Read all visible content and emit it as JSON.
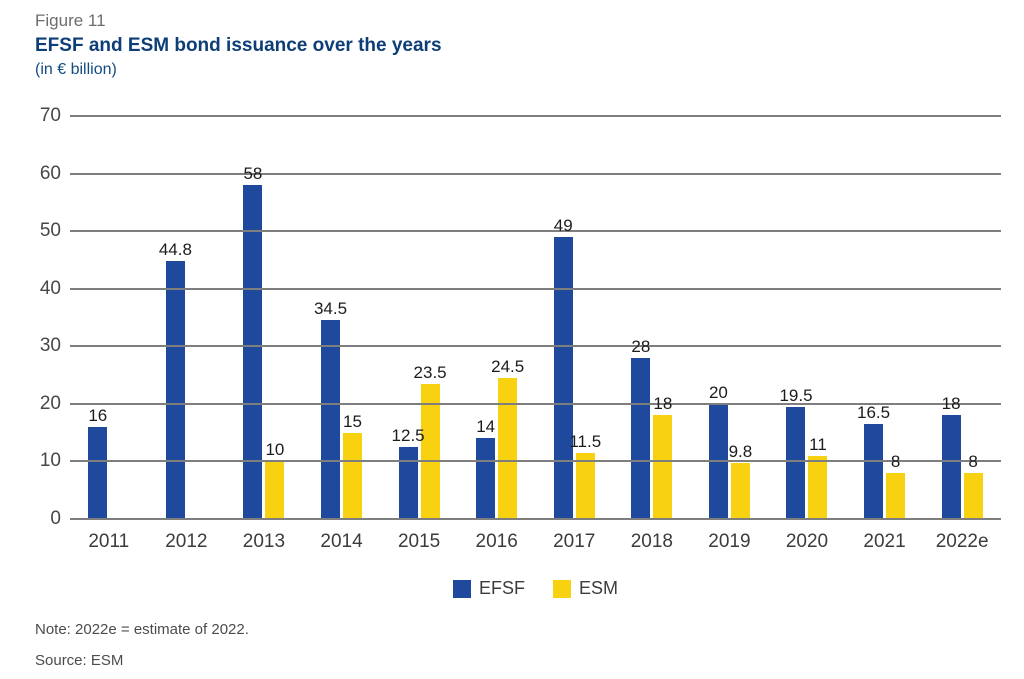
{
  "header": {
    "figure_label": "Figure 11",
    "title": "EFSF and ESM bond issuance over the years",
    "subtitle": "(in € billion)"
  },
  "chart_data": {
    "type": "bar",
    "title": "EFSF and ESM bond issuance over the years",
    "subtitle": "(in € billion)",
    "categories": [
      "2011",
      "2012",
      "2013",
      "2014",
      "2015",
      "2016",
      "2017",
      "2018",
      "2019",
      "2020",
      "2021",
      "2022e"
    ],
    "series": [
      {
        "name": "EFSF",
        "color": "#1e499c",
        "values": [
          16,
          44.8,
          58,
          34.5,
          12.5,
          14,
          49,
          28,
          20,
          19.5,
          16.5,
          18
        ]
      },
      {
        "name": "ESM",
        "color": "#f8d210",
        "values": [
          null,
          null,
          10,
          15,
          23.5,
          24.5,
          11.5,
          18,
          9.8,
          11,
          8,
          8
        ]
      }
    ],
    "ylim": [
      0,
      70
    ],
    "y_ticks": [
      0,
      10,
      20,
      30,
      40,
      50,
      60,
      70
    ],
    "grid": true,
    "gridline_color": "#7e7e7e",
    "legend_position": "bottom",
    "value_labels_shown": true
  },
  "legend": {
    "items": [
      {
        "label": "EFSF",
        "color": "#1e499c"
      },
      {
        "label": "ESM",
        "color": "#f8d210"
      }
    ]
  },
  "footer": {
    "note": "Note: 2022e = estimate of 2022.",
    "source": "Source: ESM"
  },
  "colors": {
    "title_navy": "#0d3e78",
    "figure_label_gray": "#6d6d6d",
    "efsf_blue": "#1e499c",
    "esm_yellow": "#f8d210",
    "gridline_gray": "#7e7e7e"
  }
}
